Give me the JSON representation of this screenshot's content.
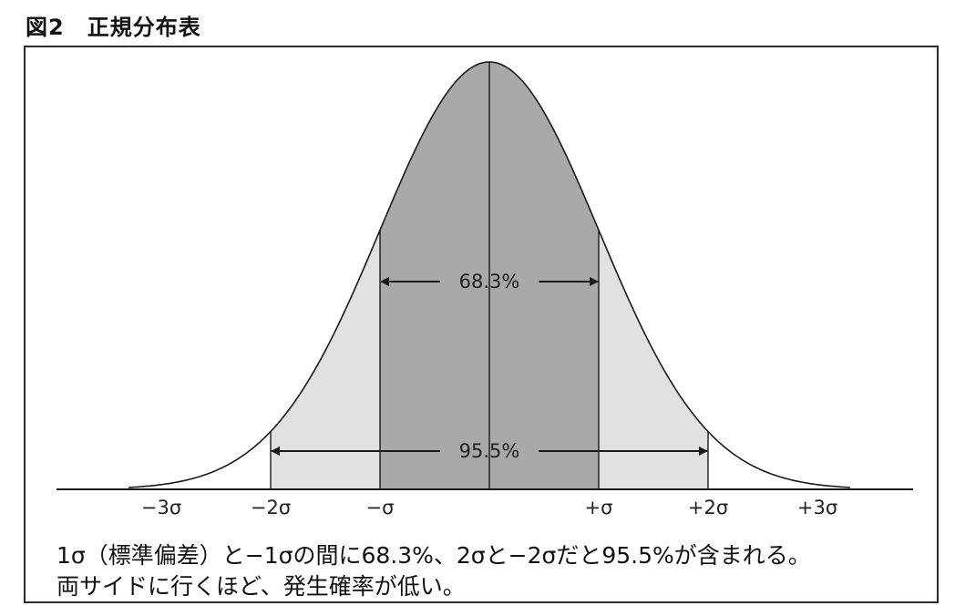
{
  "figure": {
    "title": "図2　正規分布表",
    "intervals": [
      {
        "label": "68.3%",
        "from_sigma": -1,
        "to_sigma": 1
      },
      {
        "label": "95.5%",
        "from_sigma": -2,
        "to_sigma": 2
      }
    ],
    "ticks": [
      {
        "sigma": -3,
        "label": "−3σ"
      },
      {
        "sigma": -2,
        "label": "−2σ"
      },
      {
        "sigma": -1,
        "label": "−σ"
      },
      {
        "sigma": 1,
        "label": "+σ"
      },
      {
        "sigma": 2,
        "label": "+2σ"
      },
      {
        "sigma": 3,
        "label": "+3σ"
      }
    ],
    "caption_line1": "1σ（標準偏差）と−1σの間に68.3%、2σと−2σだと95.5%が含まれる。",
    "caption_line2": "両サイドに行くほど、発生確率が低い。",
    "colors": {
      "inner_band": "#a9a9a9",
      "outer_band": "#e1e1e1",
      "line": "#1a1a1a"
    }
  }
}
